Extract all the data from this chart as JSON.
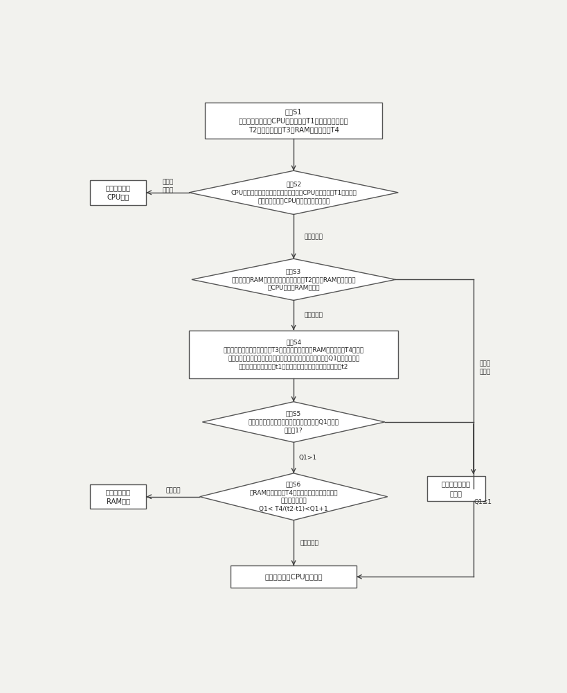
{
  "bg_color": "#f2f2ee",
  "box_color": "#ffffff",
  "box_edge": "#555555",
  "arrow_color": "#444444",
  "text_color": "#222222",
  "s1_text": "步骤S1\n监测单元分别设定CPU检测时间段T1、闪存检测时间段\nT2、延时时间段T3及RAM检测时间段T4",
  "s2_text": "步骤S2\nCPU上电后，该监测单元的闪存测试端在CPU检测时间段T1内通过闪\n存输出端捕获该CPU发出的闪存片选信号",
  "s3_text": "步骤S3\n监测单元的RAM测试端在闪存检测时间段T2内通过RAM输出端捕获\n该CPU发出的RAM选信号",
  "s4_text": "步骤S4\n监测单元开始延时延时时间段T3后，该闪存测试端在RAM检测时间段T4内捕获\n闪存片选信号，该监测单元记录闪存片选信号脉冲出现的个数Q1、第一次出现\n该闪存片选信号的时刻t1及第二次出现该闪存片选信号的时刻t2",
  "s5_text": "步骤S5\n监测单元记录闪存片选信号脉冲出现的个数Q1是否小\n于等于1?",
  "s6_text": "步骤S6\n在RAM检测时间段T4内，监测单元判断是否满足\n下述公式计算：\nQ1< T4/(t2-t1)<Q1+1",
  "cpu_error_text": "监测单元显示\nCPU异常",
  "ram_error_text": "监测单元显示\nRAM异常",
  "flash_error_text": "监测单元显示闪\n存异常",
  "normal_text": "监测单元显示CPU正常启动",
  "label_captured_s2": "捕获到信号",
  "label_captured_s3": "捕获到信号",
  "label_not_captured_s2": "未捕获\n到信号",
  "label_not_captured_s3": "未捕获\n到信号",
  "label_q1_gt1": "Q1>1",
  "label_q1_le1": "Q1≤1",
  "label_satisfy": "满足公式",
  "label_not_satisfy": "不满足公式"
}
